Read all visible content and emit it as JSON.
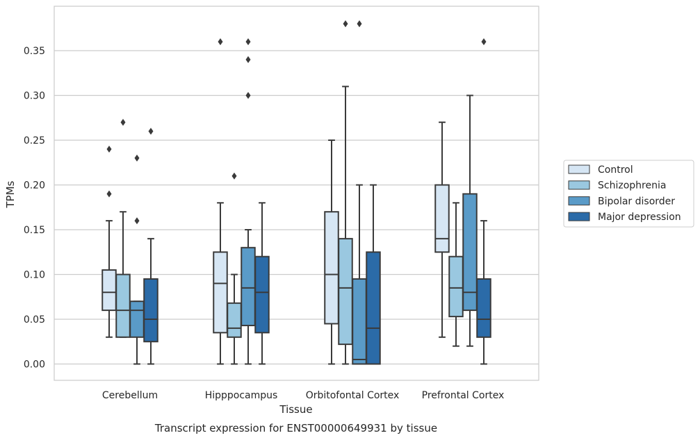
{
  "caption": "Transcript expression for ENST00000649931 by tissue",
  "chart_data": {
    "type": "boxplot",
    "xlabel": "Tissue",
    "ylabel": "TPMs",
    "ylim": [
      -0.018,
      0.398
    ],
    "yticks": [
      0.0,
      0.05,
      0.1,
      0.15,
      0.2,
      0.25,
      0.3,
      0.35
    ],
    "ytick_labels": [
      "0.00",
      "0.05",
      "0.10",
      "0.15",
      "0.20",
      "0.25",
      "0.30",
      "0.35"
    ],
    "grid": "horizontal",
    "legend_position": "right",
    "categories": [
      "Cerebellum",
      "Hipppocampus",
      "Orbitofontal Cortex",
      "Prefrontal Cortex"
    ],
    "series": [
      {
        "name": "Control",
        "color": "#d6e6f4",
        "boxes": [
          {
            "whislo": 0.03,
            "q1": 0.06,
            "med": 0.08,
            "q3": 0.105,
            "whishi": 0.16,
            "fliers": [
              0.19,
              0.24
            ]
          },
          {
            "whislo": 0.0,
            "q1": 0.035,
            "med": 0.09,
            "q3": 0.125,
            "whishi": 0.18,
            "fliers": [
              0.36
            ]
          },
          {
            "whislo": 0.0,
            "q1": 0.045,
            "med": 0.1,
            "q3": 0.17,
            "whishi": 0.25,
            "fliers": []
          },
          {
            "whislo": 0.03,
            "q1": 0.125,
            "med": 0.14,
            "q3": 0.2,
            "whishi": 0.27,
            "fliers": []
          }
        ]
      },
      {
        "name": "Schizophrenia",
        "color": "#9ac8e0",
        "boxes": [
          {
            "whislo": 0.03,
            "q1": 0.03,
            "med": 0.06,
            "q3": 0.1,
            "whishi": 0.17,
            "fliers": [
              0.27
            ]
          },
          {
            "whislo": 0.0,
            "q1": 0.03,
            "med": 0.04,
            "q3": 0.068,
            "whishi": 0.1,
            "fliers": [
              0.21
            ]
          },
          {
            "whislo": 0.0,
            "q1": 0.022,
            "med": 0.085,
            "q3": 0.14,
            "whishi": 0.31,
            "fliers": [
              0.38
            ]
          },
          {
            "whislo": 0.02,
            "q1": 0.053,
            "med": 0.085,
            "q3": 0.12,
            "whishi": 0.18,
            "fliers": []
          }
        ]
      },
      {
        "name": "Bipolar disorder",
        "color": "#5a9bc8",
        "boxes": [
          {
            "whislo": 0.0,
            "q1": 0.03,
            "med": 0.06,
            "q3": 0.07,
            "whishi": 0.07,
            "fliers": [
              0.16,
              0.23
            ]
          },
          {
            "whislo": 0.0,
            "q1": 0.043,
            "med": 0.085,
            "q3": 0.13,
            "whishi": 0.15,
            "fliers": [
              0.3,
              0.34,
              0.36
            ]
          },
          {
            "whislo": 0.0,
            "q1": 0.0,
            "med": 0.005,
            "q3": 0.095,
            "whishi": 0.2,
            "fliers": [
              0.38
            ]
          },
          {
            "whislo": 0.02,
            "q1": 0.06,
            "med": 0.08,
            "q3": 0.19,
            "whishi": 0.3,
            "fliers": []
          }
        ]
      },
      {
        "name": "Major depression",
        "color": "#2b6ba8",
        "boxes": [
          {
            "whislo": 0.0,
            "q1": 0.025,
            "med": 0.05,
            "q3": 0.095,
            "whishi": 0.14,
            "fliers": [
              0.26
            ]
          },
          {
            "whislo": 0.0,
            "q1": 0.035,
            "med": 0.08,
            "q3": 0.12,
            "whishi": 0.18,
            "fliers": []
          },
          {
            "whislo": 0.0,
            "q1": 0.0,
            "med": 0.04,
            "q3": 0.125,
            "whishi": 0.2,
            "fliers": []
          },
          {
            "whislo": 0.0,
            "q1": 0.03,
            "med": 0.05,
            "q3": 0.095,
            "whishi": 0.16,
            "fliers": [
              0.36
            ]
          }
        ]
      }
    ]
  }
}
